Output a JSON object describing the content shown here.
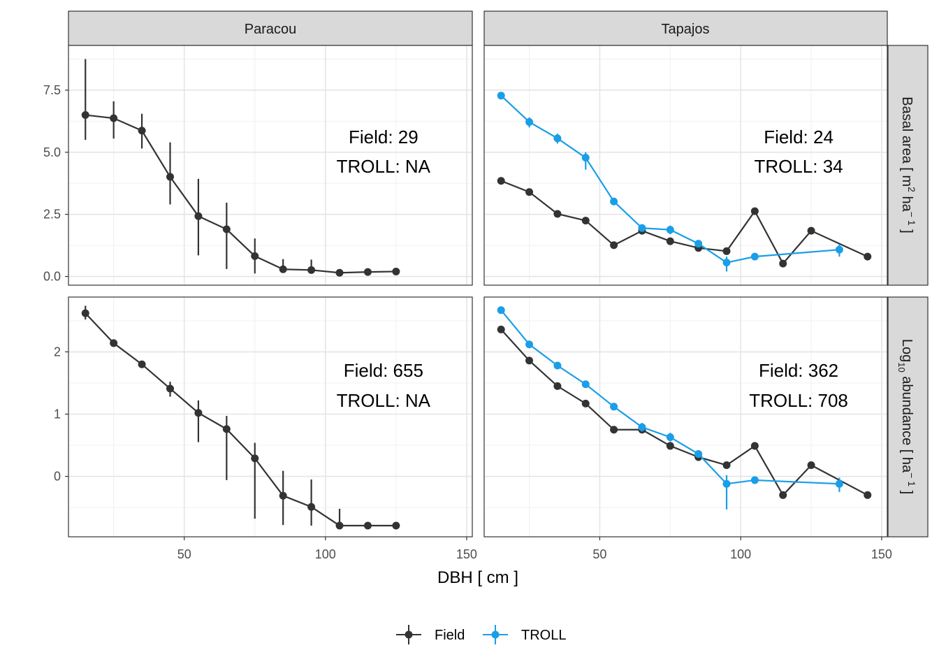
{
  "chart_data": {
    "type": "line",
    "facet_columns": [
      "Paracou",
      "Tapajos"
    ],
    "facet_rows": [
      {
        "label_main": "Basal area [ m",
        "label_sup1": "2",
        "label_mid": " ha",
        "label_sup2": "− 1",
        "label_end": " ]"
      },
      {
        "label_pre": "Log",
        "label_sub": "10",
        "label_main": " abundance [ ha",
        "label_sup": "− 1",
        "label_end": " ]"
      }
    ],
    "xlabel": "DBH [ cm ]",
    "xlim": [
      9,
      152
    ],
    "xticks": [
      "50",
      "100",
      "150"
    ],
    "xtick_values": [
      50,
      100,
      150
    ],
    "rows": [
      {
        "ylim": [
          -0.35,
          9.3
        ],
        "yticks": [
          "0.0",
          "2.5",
          "5.0",
          "7.5"
        ],
        "ytick_values": [
          0,
          2.5,
          5,
          7.5
        ],
        "minor_y": [
          1.25,
          3.75,
          6.25,
          8.75
        ]
      },
      {
        "ylim": [
          -0.97,
          2.88
        ],
        "yticks": [
          "0",
          "1",
          "2"
        ],
        "ytick_values": [
          0,
          1,
          2
        ],
        "minor_y": [
          -0.5,
          0.5,
          1.5,
          2.5
        ]
      }
    ],
    "panels": [
      {
        "row": 0,
        "col": 0,
        "annot_field": "Field: 29",
        "annot_troll": "TROLL: NA",
        "series": [
          {
            "name": "Field",
            "color": "#333333",
            "x": [
              15,
              25,
              35,
              45,
              55,
              65,
              75,
              85,
              95,
              105,
              115,
              125
            ],
            "y": [
              6.5,
              6.37,
              5.87,
              4.01,
              2.43,
              1.9,
              0.82,
              0.29,
              0.26,
              0.15,
              0.18,
              0.2
            ],
            "ylo": [
              5.5,
              5.55,
              5.15,
              2.9,
              0.85,
              0.3,
              0.12,
              0.15,
              0.18,
              null,
              null,
              null
            ],
            "yhi": [
              8.75,
              7.05,
              6.55,
              5.4,
              3.93,
              2.97,
              1.53,
              0.7,
              0.68,
              null,
              null,
              null
            ]
          }
        ]
      },
      {
        "row": 0,
        "col": 1,
        "annot_field": "Field: 24",
        "annot_troll": "TROLL: 34",
        "series": [
          {
            "name": "Field",
            "color": "#333333",
            "x": [
              15,
              25,
              35,
              45,
              55,
              65,
              75,
              85,
              95,
              105,
              115,
              125,
              145
            ],
            "y": [
              3.85,
              3.4,
              2.52,
              2.25,
              1.26,
              1.84,
              1.42,
              1.15,
              1.02,
              2.63,
              0.52,
              1.84,
              0.8
            ],
            "ylo": [
              null,
              null,
              null,
              null,
              null,
              null,
              null,
              null,
              null,
              null,
              null,
              null,
              null
            ],
            "yhi": [
              null,
              null,
              null,
              null,
              null,
              null,
              null,
              null,
              null,
              null,
              null,
              null,
              null
            ]
          },
          {
            "name": "TROLL",
            "color": "#1a9ee8",
            "x": [
              15,
              25,
              35,
              45,
              55,
              65,
              75,
              85,
              95,
              105,
              135
            ],
            "y": [
              7.28,
              6.22,
              5.56,
              4.78,
              3.02,
              1.95,
              1.88,
              1.32,
              0.56,
              0.8,
              1.08
            ],
            "ylo": [
              null,
              6.0,
              5.35,
              4.3,
              null,
              1.8,
              1.7,
              1.2,
              0.2,
              null,
              0.8
            ],
            "yhi": [
              null,
              6.4,
              5.75,
              5.0,
              null,
              2.1,
              2.05,
              1.45,
              0.8,
              null,
              1.3
            ]
          }
        ]
      },
      {
        "row": 1,
        "col": 0,
        "annot_field": "Field: 655",
        "annot_troll": "TROLL: NA",
        "series": [
          {
            "name": "Field",
            "color": "#333333",
            "x": [
              15,
              25,
              35,
              45,
              55,
              65,
              75,
              85,
              95,
              105,
              115,
              125
            ],
            "y": [
              2.62,
              2.14,
              1.8,
              1.41,
              1.02,
              0.76,
              0.29,
              -0.31,
              -0.49,
              -0.79,
              -0.79,
              -0.79
            ],
            "ylo": [
              2.52,
              null,
              null,
              1.28,
              0.55,
              -0.06,
              -0.68,
              -0.78,
              -0.79,
              -0.79,
              null,
              null
            ],
            "yhi": [
              2.74,
              null,
              null,
              1.52,
              1.22,
              0.97,
              0.54,
              0.09,
              -0.05,
              -0.52,
              null,
              null
            ]
          }
        ]
      },
      {
        "row": 1,
        "col": 1,
        "annot_field": "Field: 362",
        "annot_troll": "TROLL: 708",
        "series": [
          {
            "name": "Field",
            "color": "#333333",
            "x": [
              15,
              25,
              35,
              45,
              55,
              65,
              75,
              85,
              95,
              105,
              115,
              125,
              145
            ],
            "y": [
              2.36,
              1.86,
              1.45,
              1.17,
              0.75,
              0.75,
              0.49,
              0.31,
              0.18,
              0.49,
              -0.3,
              0.18,
              -0.3
            ],
            "ylo": [
              null,
              null,
              null,
              null,
              null,
              null,
              null,
              null,
              null,
              null,
              null,
              null,
              null
            ],
            "yhi": [
              null,
              null,
              null,
              null,
              null,
              null,
              null,
              null,
              null,
              null,
              null,
              null,
              null
            ]
          },
          {
            "name": "TROLL",
            "color": "#1a9ee8",
            "x": [
              15,
              25,
              35,
              45,
              55,
              65,
              75,
              85,
              95,
              105,
              135
            ],
            "y": [
              2.67,
              2.12,
              1.78,
              1.48,
              1.12,
              0.79,
              0.63,
              0.36,
              -0.12,
              -0.06,
              -0.12
            ],
            "ylo": [
              null,
              null,
              null,
              null,
              null,
              0.72,
              0.56,
              0.3,
              -0.53,
              null,
              -0.25
            ],
            "yhi": [
              null,
              null,
              null,
              null,
              null,
              0.86,
              0.7,
              0.42,
              0.02,
              null,
              -0.02
            ]
          }
        ]
      }
    ],
    "legend": {
      "placement": "bottom",
      "entries": [
        {
          "label": "Field",
          "color": "#333333"
        },
        {
          "label": "TROLL",
          "color": "#1a9ee8"
        }
      ]
    },
    "grid": true
  }
}
